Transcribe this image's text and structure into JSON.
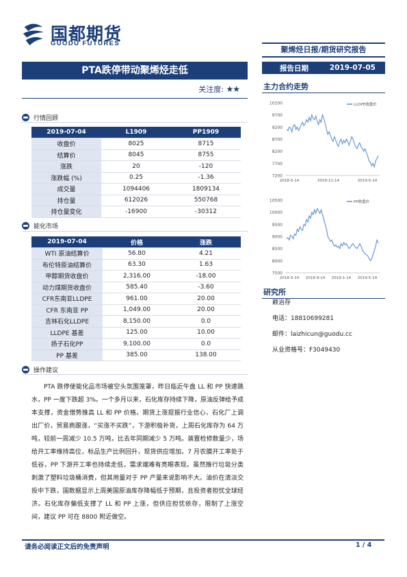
{
  "header": {
    "logo_cn": "国都期货",
    "logo_en": "GUODU FUTURES",
    "doc_type": "聚烯烃日报/期货研究报告",
    "report_date_label": "报告日期",
    "report_date": "2019-07-05",
    "title": "PTA跌停带动聚烯烃走低",
    "attention_label": "关注度:",
    "attention_stars": "★★",
    "attention_level": 2
  },
  "market_review": {
    "heading": "行情回顾",
    "columns": [
      "2019-07-04",
      "L1909",
      "PP1909"
    ],
    "rows": [
      [
        "收盘价",
        "8025",
        "8715"
      ],
      [
        "结算价",
        "8045",
        "8755"
      ],
      [
        "涨跌",
        "20",
        "-120"
      ],
      [
        "涨跌幅 (%)",
        "0.25",
        "-1.36"
      ],
      [
        "成交量",
        "1094406",
        "1809134"
      ],
      [
        "持仓量",
        "612026",
        "550768"
      ],
      [
        "持仓量变化",
        "-16900",
        "-30312"
      ]
    ]
  },
  "energy_market": {
    "heading": "能化市场",
    "columns": [
      "2019-07-04",
      "价格",
      "涨跌"
    ],
    "rows": [
      [
        "WTI 原油结算价",
        "56.80",
        "4.21"
      ],
      [
        "布伦特原油结算价",
        "63.30",
        "1.63"
      ],
      [
        "甲醇期货收盘价",
        "2,316.00",
        "-18.00"
      ],
      [
        "动力煤期货收盘价",
        "585.40",
        "-3.60"
      ],
      [
        "CFR东南亚LLDPE",
        "961.00",
        "20.00"
      ],
      [
        "CFR 东南亚 PP",
        "1,049.00",
        "20.00"
      ],
      [
        "吉林石化LLDPE",
        "8,150.00",
        "0.0"
      ],
      [
        "LLDPE 基差",
        "125.00",
        "10.00"
      ],
      [
        "扬子石化PP",
        "9,100.00",
        "0.0"
      ],
      [
        "PP 基差",
        "385.00",
        "138.00"
      ]
    ]
  },
  "advice": {
    "heading": "操作建议",
    "text": "PTA 跌停使能化品市场被空头氛围笼罩，昨日临近午盘 LL 和 PP 快速跳水，PP 一度下跌超 3%。一个多月以来，石化库存持续下降，原油反弹给予成本支撑，资金借势推高 LL 和 PP 价格。期货上涨提振行业信心，石化厂上调出厂价，贸易商跟涨，“买涨不买跌”，下游积极补货，上周石化库存为 64 万吨，较前一周减少 10.5 万吨，比去年同期减少 5 万吨。装置检修数量少，场给开工率维持高位，标品生产比例回升，现货供应增加。7 月农膜开工率处于低谷，PP 下游开工率也持续走低，需求端难有亮眼表现。虽然推行垃圾分类刺激了塑料垃圾桶消费，但其用量对于 PP 产量来说影响不大。油价在清淡交投中下跌，国数据显示上周美国原油库存降幅低于预期，且投资者担忧全球经济。石化库存偏低支撑了 LL 和 PP 上涨，但供应担忧依存，限制了上涨空间，建议 PP 可在 8800 附近做空。"
  },
  "right": {
    "chart_section": "主力合约走势",
    "research_section": "研究所",
    "analyst_name": "赖治存",
    "phone": "电话：18810699281",
    "email": "邮件：laizhicun@guodu.cc",
    "cert": "从业资格号：F3049430"
  },
  "footer": {
    "disclaimer": "请务必阅读正文后的免责声明",
    "page": "1 / 4"
  },
  "colors": {
    "brand": "#1c3f7a",
    "label_bg": "#dfe5f1",
    "line": "#5b8fd1"
  },
  "chart_data": [
    {
      "type": "line",
      "legend": "LLDPE收盘价",
      "legend_position": "top-right",
      "y_ticks": [
        "10200",
        "9700",
        "9200",
        "8700",
        "8200",
        "7700",
        "7200"
      ],
      "ylim": [
        7200,
        10200
      ],
      "x_ticks": [
        "2018-5-14",
        "2018-11-14",
        "2019-5-14"
      ],
      "grid": false,
      "series": [
        {
          "values": [
            9100,
            9050,
            9200,
            9150,
            9000,
            9250,
            9300,
            9100,
            9200,
            9050,
            9150,
            9300,
            9400,
            9250,
            9350,
            9500,
            9400,
            9600,
            9450,
            9700,
            9550,
            9500,
            9650,
            9450,
            9300,
            9500,
            9400,
            9700,
            9550,
            9350,
            9100,
            8900,
            9000,
            8850,
            8700,
            8600,
            8800,
            8650,
            8500,
            8400,
            8600,
            8700,
            8500,
            8650,
            8550,
            8700,
            8600,
            8450,
            8600,
            8800,
            8700,
            8500,
            8400,
            8300,
            8450,
            8550,
            8400,
            8300,
            8200,
            8300,
            8150,
            8000,
            7800,
            7750,
            7600,
            7700,
            7550,
            7800,
            7900,
            8025
          ]
        }
      ]
    },
    {
      "type": "line",
      "legend": "PP收盘价",
      "legend_position": "top-right",
      "y_ticks": [
        "10500",
        "10000",
        "9500",
        "9000",
        "8500",
        "8000",
        "7500"
      ],
      "ylim": [
        7500,
        10500
      ],
      "x_ticks": [
        "2018-5-14",
        "2018-9-14",
        "2019-1-14",
        "2019-5-14"
      ],
      "grid": false,
      "series": [
        {
          "values": [
            8900,
            8950,
            8850,
            9050,
            9000,
            8900,
            9100,
            9050,
            9300,
            9200,
            9400,
            9300,
            9250,
            9500,
            9450,
            9700,
            9600,
            9850,
            9750,
            10000,
            9900,
            10100,
            9950,
            10150,
            10050,
            9950,
            10100,
            9900,
            9700,
            9500,
            9300,
            9000,
            8900,
            8800,
            8850,
            8700,
            8600,
            8650,
            8550,
            8600,
            8500,
            8700,
            8600,
            8750,
            8650,
            8700,
            8600,
            8500,
            8550,
            8650,
            8700,
            8600,
            8550,
            8500,
            8600,
            8700,
            8600,
            8450,
            8350,
            8300,
            8250,
            8200,
            8100,
            8000,
            8050,
            8250,
            8400,
            8600,
            8850,
            8715
          ]
        }
      ]
    }
  ]
}
